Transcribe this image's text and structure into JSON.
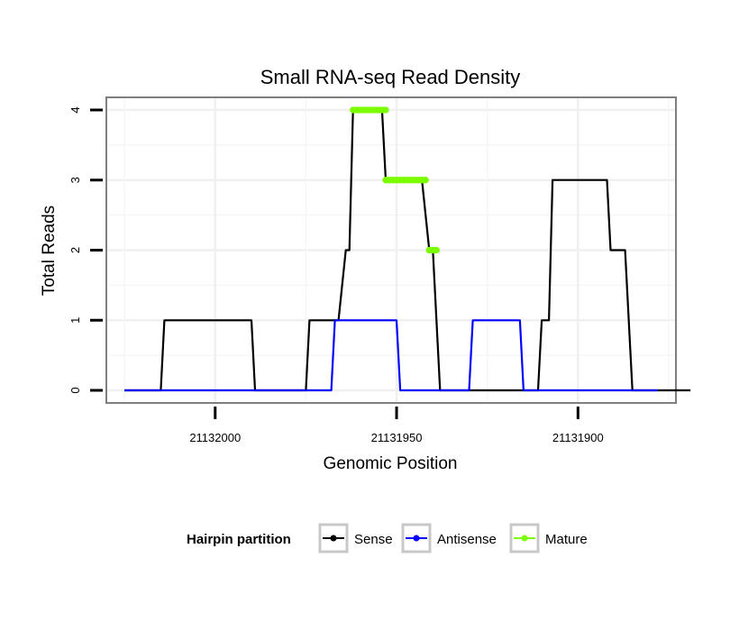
{
  "chart_data": {
    "type": "line",
    "title": "Small RNA-seq Read Density",
    "xlabel": "Genomic Position",
    "ylabel": "Total Reads",
    "xlim": [
      21132030,
      21131873
    ],
    "ylim": [
      -0.18,
      4.18
    ],
    "x_reversed": true,
    "x_ticks": [
      21132000,
      21131950,
      21131900
    ],
    "x_tick_labels": [
      "21132000",
      "21131950",
      "21131900"
    ],
    "y_ticks": [
      0,
      1,
      2,
      3,
      4
    ],
    "y_tick_labels": [
      "0",
      "1",
      "2",
      "3",
      "4"
    ],
    "grid": true,
    "legend": {
      "title": "Hairpin partition",
      "position": "bottom",
      "entries": [
        "Sense",
        "Antisense",
        "Mature"
      ]
    },
    "series": [
      {
        "name": "Sense",
        "color": "#000000",
        "points": [
          [
            21132025,
            0
          ],
          [
            21132015,
            0
          ],
          [
            21132014,
            1
          ],
          [
            21131990,
            1
          ],
          [
            21131989,
            0
          ],
          [
            21131975,
            0
          ],
          [
            21131974,
            1
          ],
          [
            21131966,
            1
          ],
          [
            21131964,
            2
          ],
          [
            21131963,
            2
          ],
          [
            21131962,
            4
          ],
          [
            21131954,
            4
          ],
          [
            21131953,
            3
          ],
          [
            21131943,
            3
          ],
          [
            21131941,
            2
          ],
          [
            21131940,
            2
          ],
          [
            21131938,
            0
          ],
          [
            21131911,
            0
          ],
          [
            21131910,
            1
          ],
          [
            21131908,
            1
          ],
          [
            21131907,
            3
          ],
          [
            21131892,
            3
          ],
          [
            21131891,
            2
          ],
          [
            21131887,
            2
          ],
          [
            21131885,
            0
          ],
          [
            21131869,
            0
          ]
        ]
      },
      {
        "name": "Antisense",
        "color": "#0000ff",
        "points": [
          [
            21132025,
            0
          ],
          [
            21131968,
            0
          ],
          [
            21131967,
            1
          ],
          [
            21131950,
            1
          ],
          [
            21131949,
            0
          ],
          [
            21131930,
            0
          ],
          [
            21131929,
            1
          ],
          [
            21131916,
            1
          ],
          [
            21131915,
            0
          ],
          [
            21131878,
            0
          ]
        ]
      },
      {
        "name": "Mature",
        "color": "#7cfc00",
        "segments": [
          {
            "level": 4,
            "x_start": 21131962,
            "x_end": 21131953
          },
          {
            "level": 3,
            "x_start": 21131953,
            "x_end": 21131942
          },
          {
            "level": 2,
            "x_start": 21131941,
            "x_end": 21131939
          }
        ]
      }
    ]
  }
}
